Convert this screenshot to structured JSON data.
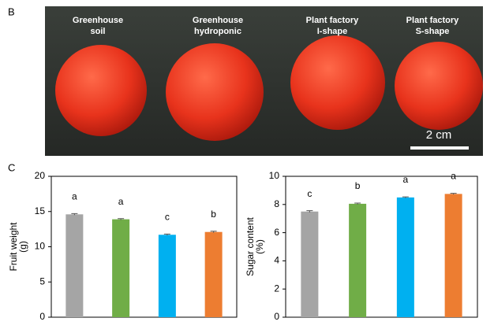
{
  "panels": {
    "b": "B",
    "c": "C"
  },
  "photo": {
    "labels": [
      [
        "Greenhouse",
        "soil"
      ],
      [
        "Greenhouse",
        "hydroponic"
      ],
      [
        "Plant factory",
        "I-shape"
      ],
      [
        "Plant factory",
        "S-shape"
      ]
    ],
    "scale": "2 cm"
  },
  "chart_data": [
    {
      "type": "bar",
      "ylabel": [
        "Fruit weight",
        "(g)"
      ],
      "categories": [
        null,
        null,
        null,
        null
      ],
      "values": [
        14.6,
        13.9,
        11.7,
        12.1
      ],
      "errors": [
        0.1,
        0.1,
        0.1,
        0.1
      ],
      "annotations": [
        "a",
        "a",
        "c",
        "b"
      ],
      "colors": [
        "#a5a5a5",
        "#70ad47",
        "#00b0f0",
        "#ed7d31"
      ],
      "ylim": [
        0,
        20
      ],
      "yticks": [
        0,
        5,
        10,
        15,
        20
      ]
    },
    {
      "type": "bar",
      "ylabel": [
        "Sugar content",
        "(%)"
      ],
      "categories": [
        null,
        null,
        null,
        null
      ],
      "values": [
        7.5,
        8.05,
        8.5,
        8.75
      ],
      "errors": [
        0.06,
        0.05,
        0.04,
        0.04
      ],
      "annotations": [
        "c",
        "b",
        "a",
        "a"
      ],
      "colors": [
        "#a5a5a5",
        "#70ad47",
        "#00b0f0",
        "#ed7d31"
      ],
      "ylim": [
        0,
        10
      ],
      "yticks": [
        0,
        2,
        4,
        6,
        8,
        10
      ]
    }
  ]
}
